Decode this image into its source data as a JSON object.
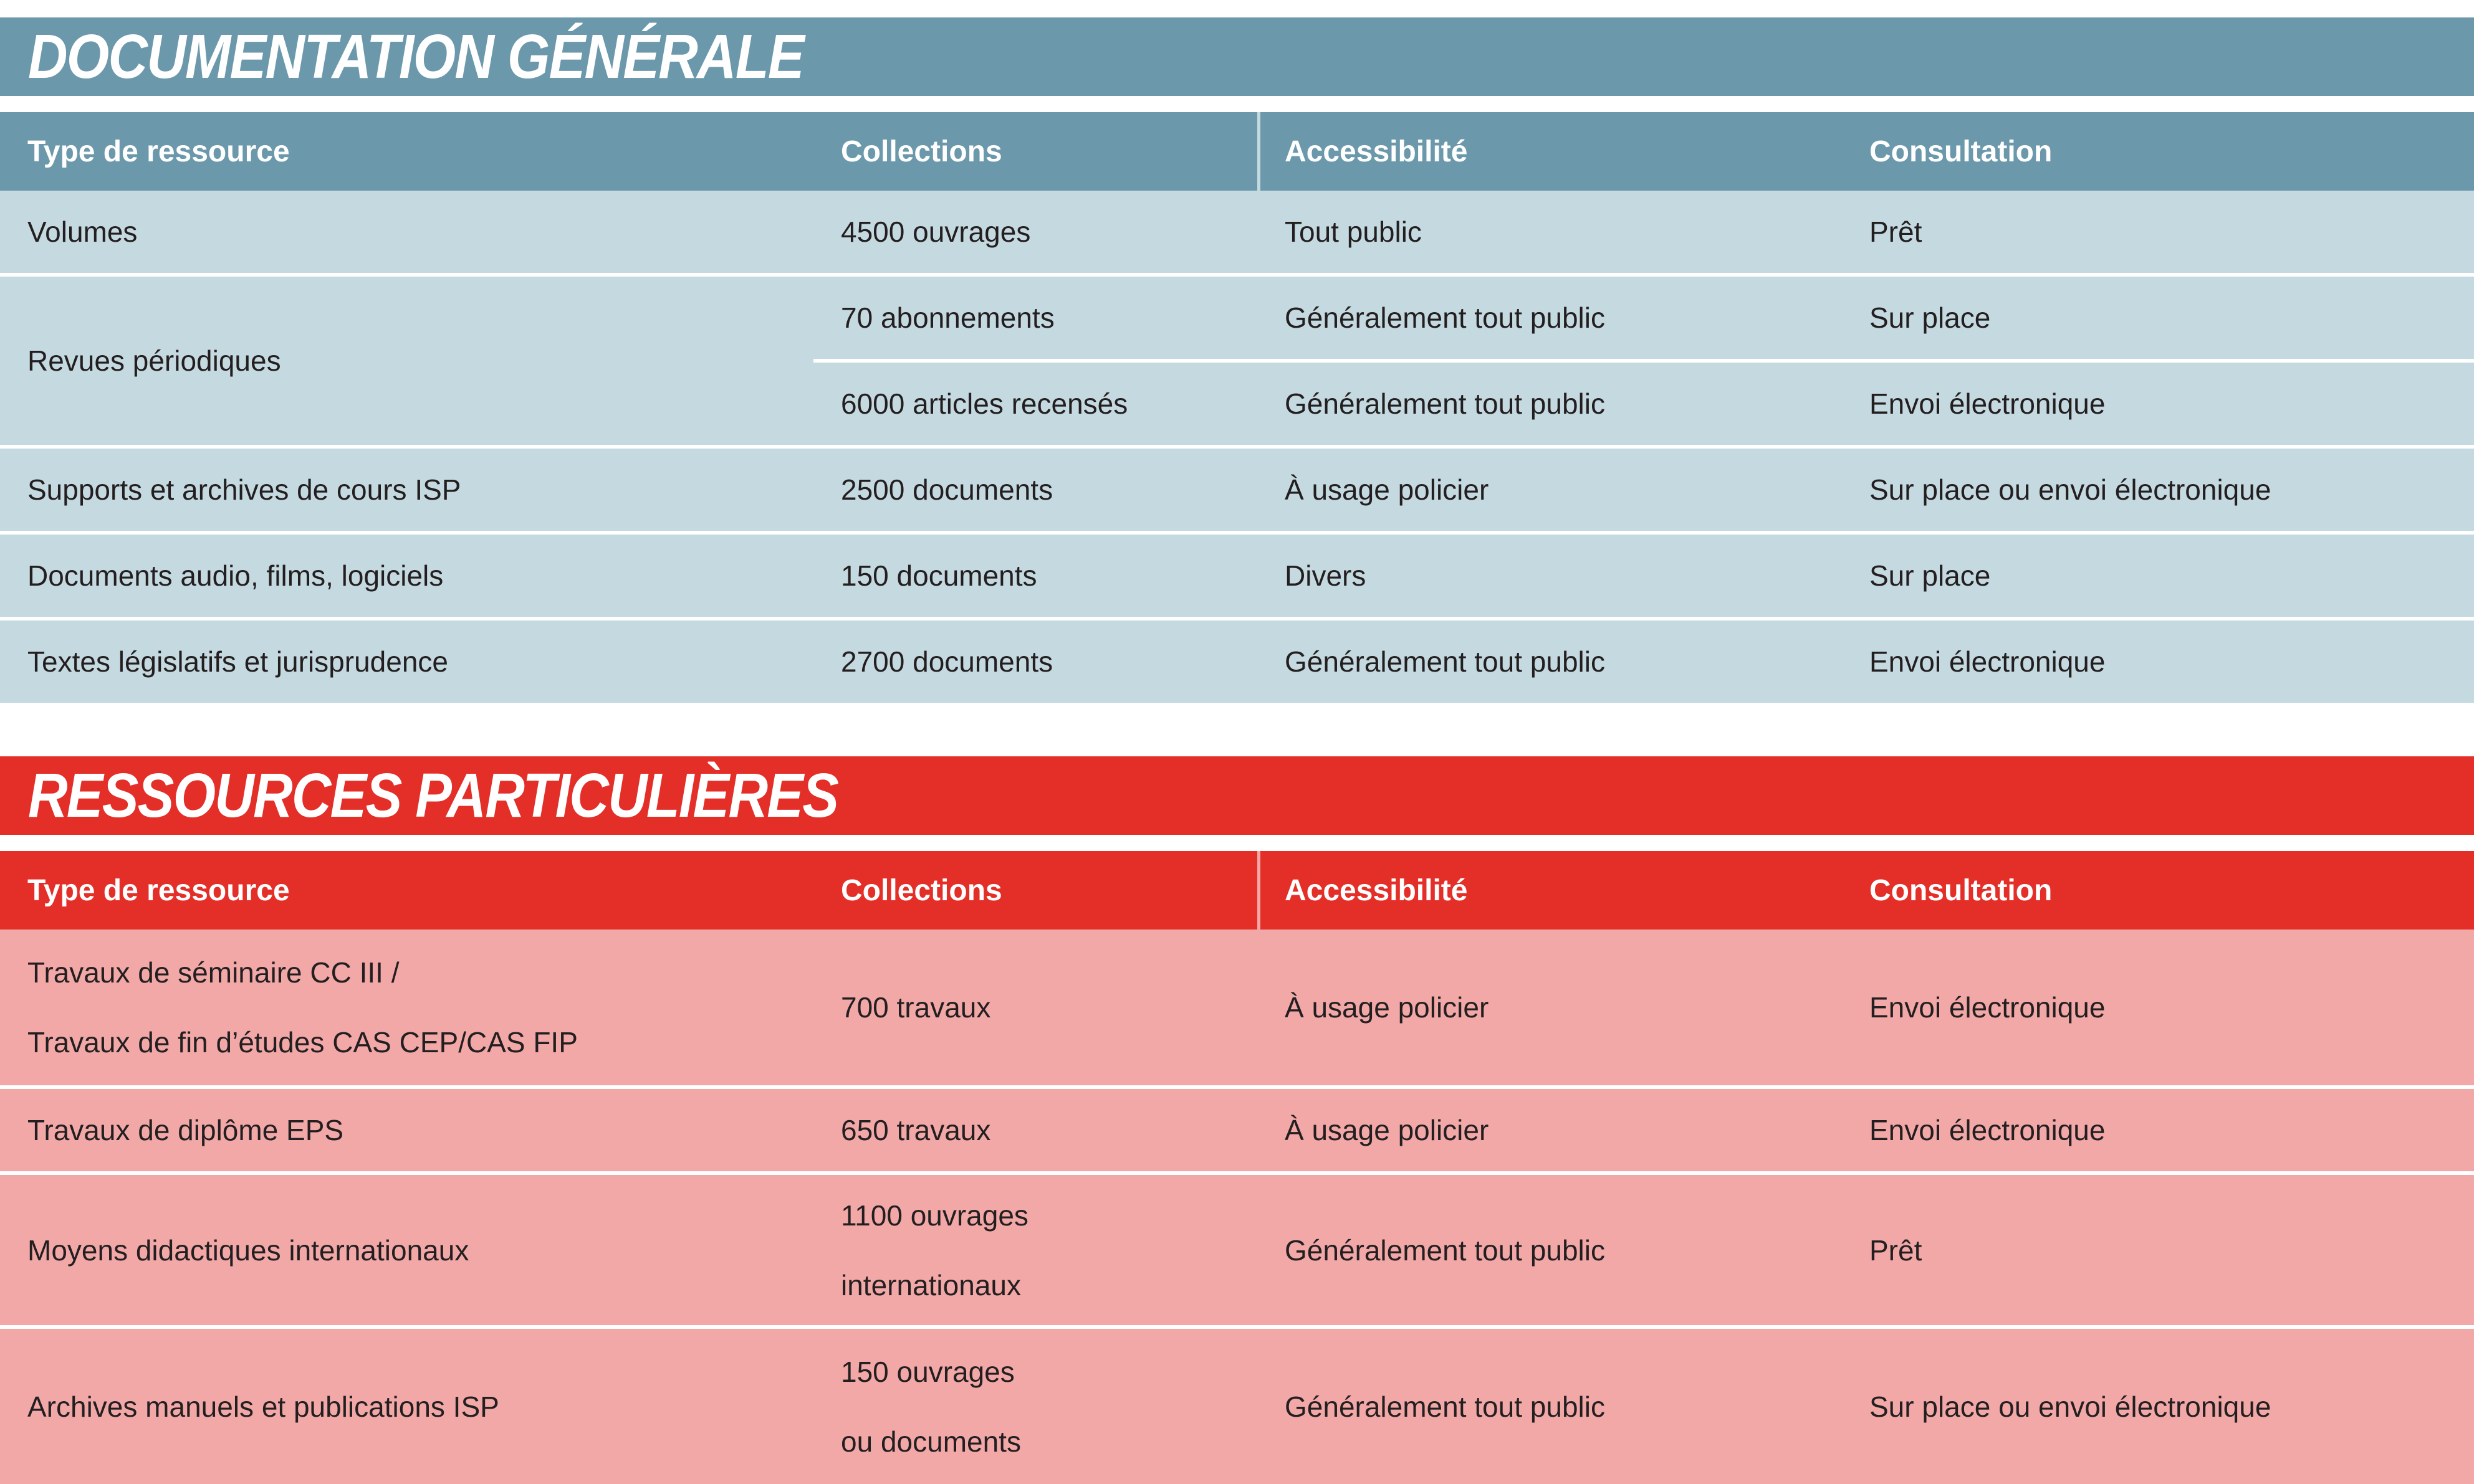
{
  "colors": {
    "blue_accent": "#6b99ab",
    "blue_row_tint": "#c5d9e0",
    "red_accent": "#e42f29",
    "red_row_tint": "#f3a8a8",
    "text_dark": "#231f20",
    "text_light": "#ffffff",
    "background": "#ffffff"
  },
  "tables": [
    {
      "name": "DOCUMENTATION GÉNÉRALE",
      "columns": [
        "Type de ressource",
        "Collections",
        "Accessibilité",
        "Consultation"
      ],
      "rows": [
        {
          "cells": [
            "Volumes",
            "4500 ouvrages",
            "Tout public",
            "Prêt"
          ]
        },
        {
          "type": "Revues périodiques",
          "subrows": [
            {
              "cells": [
                "70 abonnements",
                "Généralement tout public",
                "Sur place"
              ]
            },
            {
              "cells": [
                "6000 articles recensés",
                "Généralement tout public",
                "Envoi électronique"
              ]
            }
          ]
        },
        {
          "cells": [
            "Supports et archives de cours ISP",
            "2500 documents",
            "À usage policier",
            "Sur place ou envoi électronique"
          ]
        },
        {
          "cells": [
            "Documents audio, films, logiciels",
            "150 documents",
            "Divers",
            "Sur place"
          ]
        },
        {
          "cells": [
            "Textes législatifs et jurisprudence",
            "2700 documents",
            "Généralement tout public",
            "Envoi électronique"
          ]
        }
      ]
    },
    {
      "name": "RESSOURCES PARTICULIÈRES",
      "columns": [
        "Type de ressource",
        "Collections",
        "Accessibilité",
        "Consultation"
      ],
      "rows": [
        {
          "cells": [
            {
              "lines": [
                "Travaux de séminaire CC III /",
                "Travaux de fin d’études CAS CEP/CAS FIP"
              ]
            },
            "700 travaux",
            "À usage policier",
            "Envoi électronique"
          ]
        },
        {
          "cells": [
            "Travaux de diplôme EPS",
            "650 travaux",
            "À usage policier",
            "Envoi électronique"
          ]
        },
        {
          "cells": [
            "Moyens didactiques internationaux",
            {
              "lines": [
                "1100 ouvrages",
                "internationaux"
              ]
            },
            "Généralement tout public",
            "Prêt"
          ]
        },
        {
          "cells": [
            "Archives manuels et publications ISP",
            {
              "lines": [
                "150 ouvrages",
                "ou documents"
              ]
            },
            "Généralement tout public",
            "Sur place ou envoi électronique"
          ]
        }
      ]
    }
  ]
}
